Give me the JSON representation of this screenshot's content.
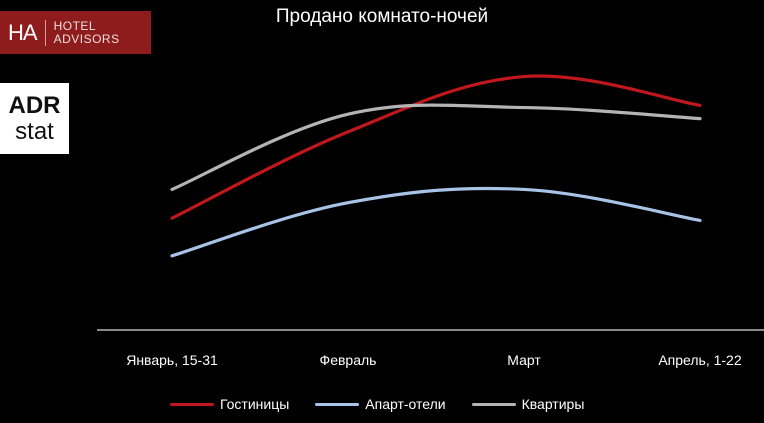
{
  "brand": {
    "ha_mark": "HA",
    "ha_line1": "HOTEL",
    "ha_line2": "ADVISORS",
    "adr_line1": "ADR",
    "adr_line2": "stat",
    "ha_color": "#8e1c1c"
  },
  "chart_data": {
    "type": "line",
    "title": "Продано комнато-ночей",
    "xlabel": "",
    "ylabel": "",
    "categories": [
      "Январь, 15-31",
      "Февраль",
      "Март",
      "Апрель, 1-22"
    ],
    "legend_position": "bottom",
    "grid": false,
    "y_axis_visible": false,
    "ylim": [
      0,
      100
    ],
    "series": [
      {
        "name": "Гостиницы",
        "color": "#c0171c",
        "values": [
          46,
          85,
          110,
          97
        ]
      },
      {
        "name": "Апарт-отели",
        "color": "#a7c3e6",
        "values": [
          29,
          53,
          59,
          45
        ]
      },
      {
        "name": "Квартиры",
        "color": "#b4b4b4",
        "values": [
          59,
          93,
          96,
          91
        ]
      }
    ]
  }
}
